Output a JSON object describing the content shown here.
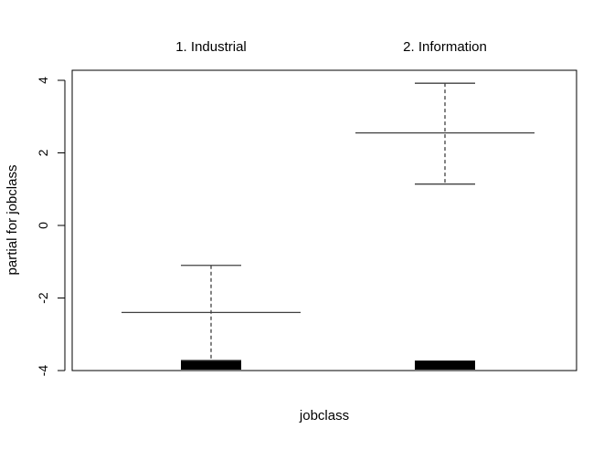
{
  "chart_data": {
    "type": "partial-dependence",
    "xlabel": "jobclass",
    "ylabel": "partial for jobclass",
    "ylim": [
      -4,
      4
    ],
    "yticks": [
      -4,
      -2,
      0,
      2,
      4
    ],
    "categories": [
      "1. Industrial",
      "2. Information"
    ],
    "series": [
      {
        "values": [
          -2.4,
          2.55
        ],
        "upper": [
          -1.1,
          3.92
        ],
        "lower": [
          -3.72,
          1.14
        ]
      }
    ],
    "rug_level": -3.85,
    "colors": {
      "axis": "#000000",
      "line": "#404040",
      "rug": "#000000"
    }
  }
}
